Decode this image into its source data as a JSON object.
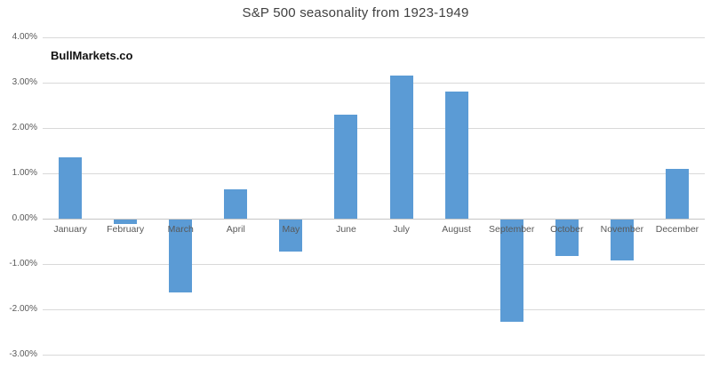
{
  "chart": {
    "watermark": "BullMarkets.co"
  },
  "chart_data": {
    "type": "bar",
    "title": "S&P 500 seasonality from 1923-1949",
    "categories": [
      "January",
      "February",
      "March",
      "April",
      "May",
      "June",
      "July",
      "August",
      "September",
      "October",
      "November",
      "December"
    ],
    "values": [
      1.35,
      -0.1,
      -1.6,
      0.65,
      -0.7,
      2.3,
      3.15,
      2.8,
      -2.25,
      -0.8,
      -0.9,
      1.1
    ],
    "unit": "%",
    "xlabel": "",
    "ylabel": "",
    "y_tick_labels": [
      "4.00%",
      "3.00%",
      "2.00%",
      "1.00%",
      "0.00%",
      "-1.00%",
      "-2.00%",
      "-3.00%"
    ],
    "y_tick_values": [
      4,
      3,
      2,
      1,
      0,
      -1,
      -2,
      -3
    ],
    "ylim": [
      -3,
      4
    ],
    "grid": true,
    "legend": false,
    "colors": {
      "bar": "#5b9bd5",
      "gridline": "#d9d9d9",
      "zero_axis_line": "#c6c6c6",
      "axis_text": "#595959",
      "title_text": "#404040",
      "watermark_text": "#111111",
      "background": "#ffffff"
    }
  }
}
